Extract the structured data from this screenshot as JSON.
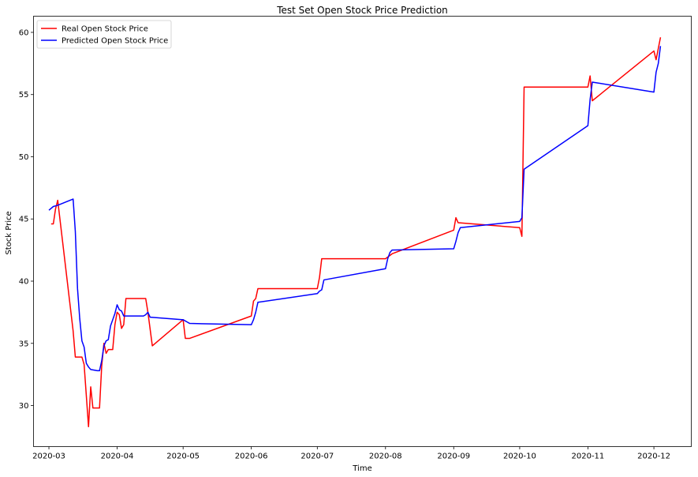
{
  "chart_data": {
    "type": "line",
    "title": "Test Set Open Stock Price Prediction",
    "xlabel": "Time",
    "ylabel": "Stock Price",
    "x_axis_type": "date",
    "xlim": [
      "2020-02-23",
      "2020-12-18"
    ],
    "ylim": [
      26.7,
      61.3
    ],
    "grid": false,
    "legend_position": "top-left",
    "x_ticks": [
      "2020-03",
      "2020-04",
      "2020-05",
      "2020-06",
      "2020-07",
      "2020-08",
      "2020-09",
      "2020-10",
      "2020-11",
      "2020-12"
    ],
    "y_ticks": [
      "30",
      "35",
      "40",
      "45",
      "50",
      "55",
      "60"
    ],
    "series": [
      {
        "name": "Real Open Stock Price",
        "color": "#ff0000",
        "points": [
          [
            "2020-03-02",
            44.6
          ],
          [
            "2020-03-03",
            44.6
          ],
          [
            "2020-03-04",
            45.8
          ],
          [
            "2020-03-05",
            46.5
          ],
          [
            "2020-03-12",
            36.0
          ],
          [
            "2020-03-13",
            33.9
          ],
          [
            "2020-03-16",
            33.9
          ],
          [
            "2020-03-17",
            33.3
          ],
          [
            "2020-03-19",
            28.3
          ],
          [
            "2020-03-20",
            31.5
          ],
          [
            "2020-03-21",
            29.8
          ],
          [
            "2020-03-24",
            29.8
          ],
          [
            "2020-03-25",
            33.2
          ],
          [
            "2020-03-26",
            35.0
          ],
          [
            "2020-03-27",
            34.2
          ],
          [
            "2020-03-28",
            34.5
          ],
          [
            "2020-03-30",
            34.5
          ],
          [
            "2020-03-31",
            36.5
          ],
          [
            "2020-04-01",
            37.5
          ],
          [
            "2020-04-02",
            37.3
          ],
          [
            "2020-04-03",
            36.2
          ],
          [
            "2020-04-04",
            36.5
          ],
          [
            "2020-04-05",
            38.6
          ],
          [
            "2020-04-14",
            38.6
          ],
          [
            "2020-04-15",
            37.5
          ],
          [
            "2020-04-17",
            34.8
          ],
          [
            "2020-05-01",
            36.9
          ],
          [
            "2020-05-02",
            35.4
          ],
          [
            "2020-05-04",
            35.4
          ],
          [
            "2020-06-01",
            37.2
          ],
          [
            "2020-06-02",
            38.4
          ],
          [
            "2020-06-03",
            38.6
          ],
          [
            "2020-06-04",
            39.4
          ],
          [
            "2020-07-01",
            39.4
          ],
          [
            "2020-07-02",
            40.3
          ],
          [
            "2020-07-03",
            41.8
          ],
          [
            "2020-08-01",
            41.8
          ],
          [
            "2020-08-04",
            42.2
          ],
          [
            "2020-09-01",
            44.1
          ],
          [
            "2020-09-02",
            45.1
          ],
          [
            "2020-09-03",
            44.7
          ],
          [
            "2020-10-01",
            44.3
          ],
          [
            "2020-10-02",
            43.6
          ],
          [
            "2020-10-03",
            55.6
          ],
          [
            "2020-11-01",
            55.6
          ],
          [
            "2020-11-02",
            56.5
          ],
          [
            "2020-11-03",
            54.5
          ],
          [
            "2020-12-01",
            58.5
          ],
          [
            "2020-12-02",
            57.8
          ],
          [
            "2020-12-03",
            58.7
          ],
          [
            "2020-12-04",
            59.6
          ]
        ]
      },
      {
        "name": "Predicted Open Stock Price",
        "color": "#0000ff",
        "points": [
          [
            "2020-03-01",
            45.7
          ],
          [
            "2020-03-03",
            46.0
          ],
          [
            "2020-03-05",
            46.1
          ],
          [
            "2020-03-12",
            46.6
          ],
          [
            "2020-03-13",
            44.0
          ],
          [
            "2020-03-14",
            39.4
          ],
          [
            "2020-03-15",
            37.0
          ],
          [
            "2020-03-16",
            35.2
          ],
          [
            "2020-03-17",
            34.7
          ],
          [
            "2020-03-18",
            33.4
          ],
          [
            "2020-03-19",
            33.1
          ],
          [
            "2020-03-20",
            32.9
          ],
          [
            "2020-03-23",
            32.8
          ],
          [
            "2020-03-24",
            32.8
          ],
          [
            "2020-03-25",
            33.6
          ],
          [
            "2020-03-26",
            34.8
          ],
          [
            "2020-03-27",
            35.2
          ],
          [
            "2020-03-28",
            35.3
          ],
          [
            "2020-03-29",
            36.4
          ],
          [
            "2020-03-31",
            37.4
          ],
          [
            "2020-04-01",
            38.1
          ],
          [
            "2020-04-02",
            37.7
          ],
          [
            "2020-04-03",
            37.6
          ],
          [
            "2020-04-04",
            37.2
          ],
          [
            "2020-04-13",
            37.2
          ],
          [
            "2020-04-14",
            37.3
          ],
          [
            "2020-04-15",
            37.5
          ],
          [
            "2020-04-16",
            37.1
          ],
          [
            "2020-05-01",
            36.9
          ],
          [
            "2020-05-03",
            36.7
          ],
          [
            "2020-05-04",
            36.6
          ],
          [
            "2020-06-01",
            36.5
          ],
          [
            "2020-06-02",
            36.9
          ],
          [
            "2020-06-03",
            37.5
          ],
          [
            "2020-06-04",
            38.3
          ],
          [
            "2020-07-01",
            39.0
          ],
          [
            "2020-07-02",
            39.2
          ],
          [
            "2020-07-03",
            39.3
          ],
          [
            "2020-07-04",
            40.1
          ],
          [
            "2020-08-01",
            41.0
          ],
          [
            "2020-08-02",
            41.8
          ],
          [
            "2020-08-03",
            42.3
          ],
          [
            "2020-08-04",
            42.5
          ],
          [
            "2020-09-01",
            42.6
          ],
          [
            "2020-09-02",
            43.2
          ],
          [
            "2020-09-03",
            43.9
          ],
          [
            "2020-09-04",
            44.3
          ],
          [
            "2020-10-01",
            44.8
          ],
          [
            "2020-10-02",
            45.1
          ],
          [
            "2020-10-03",
            49.0
          ],
          [
            "2020-11-01",
            52.5
          ],
          [
            "2020-11-02",
            54.6
          ],
          [
            "2020-11-03",
            56.0
          ],
          [
            "2020-12-01",
            55.2
          ],
          [
            "2020-12-02",
            56.8
          ],
          [
            "2020-12-03",
            57.5
          ],
          [
            "2020-12-04",
            58.9
          ]
        ]
      }
    ]
  }
}
